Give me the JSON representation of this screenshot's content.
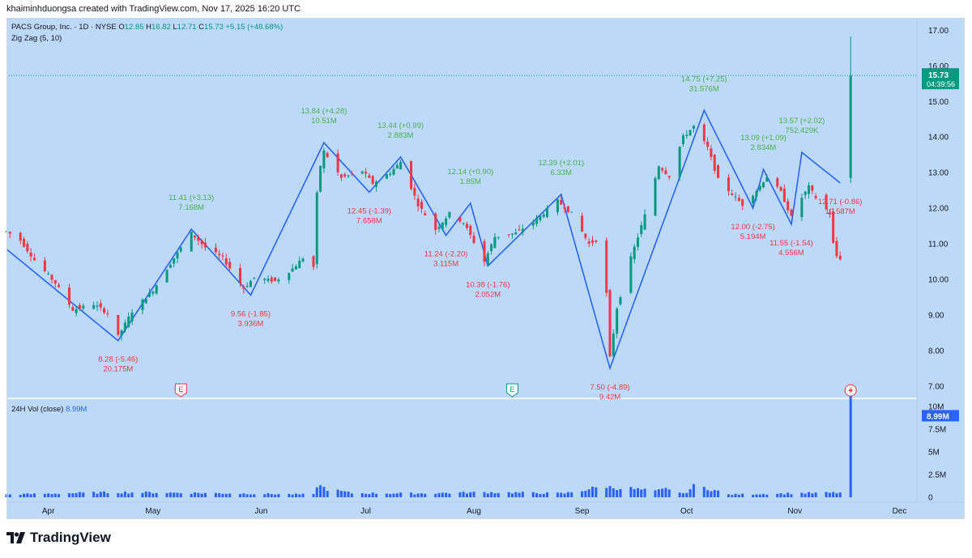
{
  "header": {
    "attribution": "khaiminhduongsa created with TradingView.com, Nov 17, 2025 16:20 UTC"
  },
  "legend": {
    "title": "PACS Group, Inc. · 1D · NYSE",
    "open_label": "O",
    "open": "12.85",
    "high_label": "H",
    "high": "16.82",
    "low_label": "L",
    "low": "12.71",
    "close_label": "C",
    "close": "15.73",
    "change": "+5.15 (+48.68%)",
    "indicator": "Zig Zag (5, 10)"
  },
  "price_badge": {
    "price": "15.73",
    "countdown": "04:39:56"
  },
  "volume": {
    "legend_label": "24H Vol (close)",
    "legend_value": "8.99M",
    "badge": "8.99M",
    "axis_ticks": [
      "10M",
      "7.5M",
      "5M",
      "2.5M",
      "0"
    ]
  },
  "footer": {
    "brand": "TradingView"
  },
  "colors": {
    "up": "#089981",
    "down": "#f23645",
    "zigzag": "#2962ff",
    "volume": "#2962ff",
    "background": "#bcd9f7",
    "up_label": "#4caf50",
    "down_label": "#f23645"
  },
  "events": [
    {
      "type": "earnings",
      "icon": "E",
      "date": "2025-05-09"
    },
    {
      "type": "earnings",
      "icon": "E",
      "date": "2025-08-12"
    },
    {
      "type": "news",
      "icon": "lightning",
      "date": "2025-11-17"
    }
  ],
  "chart_data": {
    "type": "candlestick",
    "xlabel": "",
    "ylabel": "",
    "x_range": [
      "2025-03-20",
      "2025-12-06"
    ],
    "y_range": [
      6.7,
      17.35
    ],
    "y_ticks": [
      "17.00",
      "16.00",
      "15.00",
      "14.00",
      "13.00",
      "12.00",
      "11.00",
      "10.00",
      "9.00",
      "8.00",
      "7.00"
    ],
    "x_ticks": [
      {
        "label": "Apr",
        "date": "2025-04-01"
      },
      {
        "label": "May",
        "date": "2025-05-01"
      },
      {
        "label": "Jun",
        "date": "2025-06-01"
      },
      {
        "label": "Jul",
        "date": "2025-07-01"
      },
      {
        "label": "Aug",
        "date": "2025-08-01"
      },
      {
        "label": "Sep",
        "date": "2025-09-01"
      },
      {
        "label": "Oct",
        "date": "2025-10-01"
      },
      {
        "label": "Nov",
        "date": "2025-11-01"
      },
      {
        "label": "Dec",
        "date": "2025-12-01"
      }
    ],
    "last_price": 15.73,
    "ohlc_anchors": [
      {
        "date": "2025-03-20",
        "close": 11.35
      },
      {
        "date": "2025-03-24",
        "close": 11.1
      },
      {
        "date": "2025-03-28",
        "close": 10.55
      },
      {
        "date": "2025-04-03",
        "close": 9.9
      },
      {
        "date": "2025-04-08",
        "close": 9.15
      },
      {
        "date": "2025-04-14",
        "close": 9.3
      },
      {
        "date": "2025-04-18",
        "close": 9.05
      },
      {
        "date": "2025-04-21",
        "close": 8.4
      },
      {
        "date": "2025-04-25",
        "close": 9.1
      },
      {
        "date": "2025-05-01",
        "close": 9.7
      },
      {
        "date": "2025-05-07",
        "close": 10.6
      },
      {
        "date": "2025-05-12",
        "close": 11.3
      },
      {
        "date": "2025-05-16",
        "close": 10.9
      },
      {
        "date": "2025-05-21",
        "close": 10.6
      },
      {
        "date": "2025-05-27",
        "close": 9.75
      },
      {
        "date": "2025-05-30",
        "close": 10.05
      },
      {
        "date": "2025-06-05",
        "close": 9.95
      },
      {
        "date": "2025-06-10",
        "close": 10.3
      },
      {
        "date": "2025-06-13",
        "close": 10.6
      },
      {
        "date": "2025-06-16",
        "close": 10.35
      },
      {
        "date": "2025-06-17",
        "close": 12.4
      },
      {
        "date": "2025-06-18",
        "close": 13.2
      },
      {
        "date": "2025-06-19",
        "close": 13.6
      },
      {
        "date": "2025-06-24",
        "close": 12.85
      },
      {
        "date": "2025-06-30",
        "close": 13.05
      },
      {
        "date": "2025-07-03",
        "close": 12.7
      },
      {
        "date": "2025-07-08",
        "close": 13.0
      },
      {
        "date": "2025-07-11",
        "close": 13.3
      },
      {
        "date": "2025-07-16",
        "close": 12.1
      },
      {
        "date": "2025-07-21",
        "close": 11.4
      },
      {
        "date": "2025-07-25",
        "close": 11.85
      },
      {
        "date": "2025-07-29",
        "close": 11.6
      },
      {
        "date": "2025-08-04",
        "close": 10.5
      },
      {
        "date": "2025-08-07",
        "close": 11.2
      },
      {
        "date": "2025-08-13",
        "close": 11.3
      },
      {
        "date": "2025-08-19",
        "close": 11.7
      },
      {
        "date": "2025-08-25",
        "close": 12.2
      },
      {
        "date": "2025-08-29",
        "close": 11.85
      },
      {
        "date": "2025-09-03",
        "close": 11.0
      },
      {
        "date": "2025-09-05",
        "close": 11.1
      },
      {
        "date": "2025-09-08",
        "close": 9.6
      },
      {
        "date": "2025-09-09",
        "close": 7.8
      },
      {
        "date": "2025-09-11",
        "close": 9.2
      },
      {
        "date": "2025-09-15",
        "close": 10.6
      },
      {
        "date": "2025-09-19",
        "close": 11.8
      },
      {
        "date": "2025-09-23",
        "close": 13.2
      },
      {
        "date": "2025-09-26",
        "close": 12.9
      },
      {
        "date": "2025-09-30",
        "close": 14.0
      },
      {
        "date": "2025-10-03",
        "close": 14.3
      },
      {
        "date": "2025-10-07",
        "close": 13.7
      },
      {
        "date": "2025-10-10",
        "close": 12.8
      },
      {
        "date": "2025-10-14",
        "close": 12.4
      },
      {
        "date": "2025-10-17",
        "close": 12.1
      },
      {
        "date": "2025-10-21",
        "close": 12.5
      },
      {
        "date": "2025-10-24",
        "close": 12.9
      },
      {
        "date": "2025-10-28",
        "close": 12.45
      },
      {
        "date": "2025-10-31",
        "close": 11.75
      },
      {
        "date": "2025-11-03",
        "close": 12.3
      },
      {
        "date": "2025-11-05",
        "close": 12.6
      },
      {
        "date": "2025-11-07",
        "close": 12.3
      },
      {
        "date": "2025-11-11",
        "close": 11.85
      },
      {
        "date": "2025-11-12",
        "close": 11.0
      },
      {
        "date": "2025-11-13",
        "close": 10.65
      },
      {
        "date": "2025-11-14",
        "close": 10.6
      },
      {
        "date": "2025-11-17",
        "close": 15.73,
        "open": 12.85,
        "high": 16.82,
        "low": 12.71
      }
    ],
    "zigzag": [
      {
        "date": "2025-03-20",
        "price": 10.85
      },
      {
        "date": "2025-04-21",
        "price": 8.28
      },
      {
        "date": "2025-05-12",
        "price": 11.41
      },
      {
        "date": "2025-05-29",
        "price": 9.56
      },
      {
        "date": "2025-06-19",
        "price": 13.84
      },
      {
        "date": "2025-07-02",
        "price": 12.45
      },
      {
        "date": "2025-07-11",
        "price": 13.44
      },
      {
        "date": "2025-07-24",
        "price": 11.24
      },
      {
        "date": "2025-07-31",
        "price": 12.14
      },
      {
        "date": "2025-08-05",
        "price": 10.38
      },
      {
        "date": "2025-08-26",
        "price": 12.39
      },
      {
        "date": "2025-09-09",
        "price": 7.5
      },
      {
        "date": "2025-10-06",
        "price": 14.75
      },
      {
        "date": "2025-10-20",
        "price": 12.0
      },
      {
        "date": "2025-10-23",
        "price": 13.09
      },
      {
        "date": "2025-10-31",
        "price": 11.55
      },
      {
        "date": "2025-11-03",
        "price": 13.57
      },
      {
        "date": "2025-11-14",
        "price": 12.71
      }
    ],
    "pivot_labels": [
      {
        "date": "2025-04-21",
        "dir": "low",
        "price_text": "8.28 (-5.46)",
        "vol_text": "20.175M"
      },
      {
        "date": "2025-05-12",
        "dir": "high",
        "price_text": "11.41 (+3.13)",
        "vol_text": "7.168M"
      },
      {
        "date": "2025-05-29",
        "dir": "low",
        "price_text": "9.56 (-1.85)",
        "vol_text": "3.936M"
      },
      {
        "date": "2025-06-19",
        "dir": "high",
        "price_text": "13.84 (+4.28)",
        "vol_text": "10.51M"
      },
      {
        "date": "2025-07-02",
        "dir": "low",
        "price_text": "12.45 (-1.39)",
        "vol_text": "7.658M"
      },
      {
        "date": "2025-07-11",
        "dir": "high",
        "price_text": "13.44 (+0.99)",
        "vol_text": "2.883M"
      },
      {
        "date": "2025-07-24",
        "dir": "low",
        "price_text": "11.24 (-2.20)",
        "vol_text": "3.115M"
      },
      {
        "date": "2025-07-31",
        "dir": "high",
        "price_text": "12.14 (+0.90)",
        "vol_text": "1.85M"
      },
      {
        "date": "2025-08-05",
        "dir": "low",
        "price_text": "10.38 (-1.76)",
        "vol_text": "2.052M"
      },
      {
        "date": "2025-08-26",
        "dir": "high",
        "price_text": "12.39 (+2.01)",
        "vol_text": "6.33M"
      },
      {
        "date": "2025-09-09",
        "dir": "low",
        "price_text": "7.50 (-4.89)",
        "vol_text": "9.42M"
      },
      {
        "date": "2025-10-06",
        "dir": "high",
        "price_text": "14.75 (+7.25)",
        "vol_text": "31.576M"
      },
      {
        "date": "2025-10-20",
        "dir": "low",
        "price_text": "12.00 (-2.75)",
        "vol_text": "5.194M"
      },
      {
        "date": "2025-10-23",
        "dir": "high",
        "price_text": "13.09 (+1.09)",
        "vol_text": "2.834M"
      },
      {
        "date": "2025-10-31",
        "dir": "low",
        "price_text": "11.55 (-1.54)",
        "vol_text": "4.556M"
      },
      {
        "date": "2025-11-03",
        "dir": "high",
        "price_text": "13.57 (+2.02)",
        "vol_text": "752.429K"
      },
      {
        "date": "2025-11-14",
        "dir": "low",
        "price_text": "12.71 (-0.86)",
        "vol_text": "10.587M"
      }
    ],
    "volume_series": {
      "name": "24H Vol (close)",
      "y_range": [
        0,
        10000000
      ],
      "values": [
        {
          "date": "2025-03-20",
          "value": 300000
        },
        {
          "date": "2025-04-08",
          "value": 450000
        },
        {
          "date": "2025-04-21",
          "value": 550000
        },
        {
          "date": "2025-05-12",
          "value": 480000
        },
        {
          "date": "2025-06-16",
          "value": 300000
        },
        {
          "date": "2025-06-17",
          "value": 1350000
        },
        {
          "date": "2025-06-20",
          "value": 900000
        },
        {
          "date": "2025-06-27",
          "value": 450000
        },
        {
          "date": "2025-07-15",
          "value": 420000
        },
        {
          "date": "2025-08-05",
          "value": 550000
        },
        {
          "date": "2025-08-27",
          "value": 420000
        },
        {
          "date": "2025-09-08",
          "value": 1250000
        },
        {
          "date": "2025-09-09",
          "value": 1100000
        },
        {
          "date": "2025-09-15",
          "value": 950000
        },
        {
          "date": "2025-09-22",
          "value": 650000
        },
        {
          "date": "2025-09-26",
          "value": 1000000
        },
        {
          "date": "2025-09-30",
          "value": 350000
        },
        {
          "date": "2025-10-03",
          "value": 1200000
        },
        {
          "date": "2025-10-07",
          "value": 1000000
        },
        {
          "date": "2025-10-13",
          "value": 300000
        },
        {
          "date": "2025-11-03",
          "value": 450000
        },
        {
          "date": "2025-11-14",
          "value": 500000
        },
        {
          "date": "2025-11-17",
          "value": 8990000
        }
      ]
    }
  }
}
